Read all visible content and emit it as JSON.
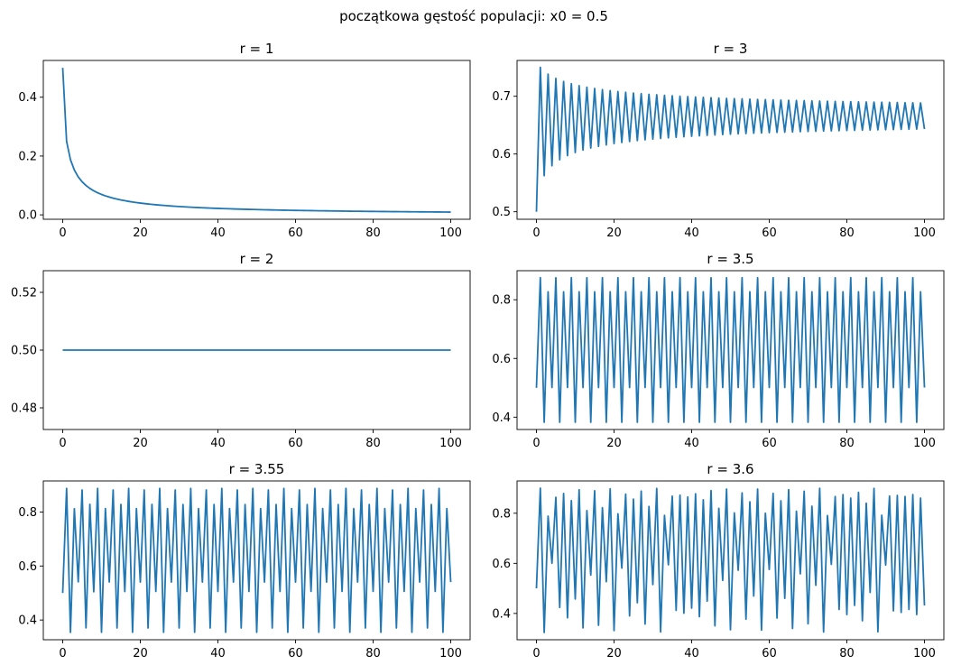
{
  "figure": {
    "suptitle": "początkowa gęstość populacji: x0 = 0.5",
    "line_color": "#1f77b4"
  },
  "chart_data": [
    {
      "type": "line",
      "title": "r = 1",
      "r": 1,
      "x0": 0.5,
      "n_steps": 100,
      "xlim": [
        -5,
        105
      ],
      "ylim": [
        -0.015,
        0.525
      ],
      "xticks": [
        0,
        20,
        40,
        60,
        80,
        100
      ],
      "yticks": [
        0.0,
        0.2,
        0.4
      ],
      "xtick_labels": [
        "0",
        "20",
        "40",
        "60",
        "80",
        "100"
      ],
      "ytick_labels": [
        "0.0",
        "0.2",
        "0.4"
      ]
    },
    {
      "type": "line",
      "title": "r = 3",
      "r": 3,
      "x0": 0.5,
      "n_steps": 100,
      "xlim": [
        -5,
        105
      ],
      "ylim": [
        0.487,
        0.762
      ],
      "xticks": [
        0,
        20,
        40,
        60,
        80,
        100
      ],
      "yticks": [
        0.5,
        0.6,
        0.7
      ],
      "xtick_labels": [
        "0",
        "20",
        "40",
        "60",
        "80",
        "100"
      ],
      "ytick_labels": [
        "0.5",
        "0.6",
        "0.7"
      ]
    },
    {
      "type": "line",
      "title": "r = 2",
      "r": 2,
      "x0": 0.5,
      "n_steps": 100,
      "xlim": [
        -5,
        105
      ],
      "ylim": [
        0.4725,
        0.5275
      ],
      "xticks": [
        0,
        20,
        40,
        60,
        80,
        100
      ],
      "yticks": [
        0.48,
        0.5,
        0.52
      ],
      "xtick_labels": [
        "0",
        "20",
        "40",
        "60",
        "80",
        "100"
      ],
      "ytick_labels": [
        "0.48",
        "0.50",
        "0.52"
      ]
    },
    {
      "type": "line",
      "title": "r = 3.5",
      "r": 3.5,
      "x0": 0.5,
      "n_steps": 100,
      "xlim": [
        -5,
        105
      ],
      "ylim": [
        0.358,
        0.899
      ],
      "xticks": [
        0,
        20,
        40,
        60,
        80,
        100
      ],
      "yticks": [
        0.4,
        0.6,
        0.8
      ],
      "xtick_labels": [
        "0",
        "20",
        "40",
        "60",
        "80",
        "100"
      ],
      "ytick_labels": [
        "0.4",
        "0.6",
        "0.8"
      ]
    },
    {
      "type": "line",
      "title": "r = 3.55",
      "r": 3.55,
      "x0": 0.5,
      "n_steps": 100,
      "xlim": [
        -5,
        105
      ],
      "ylim": [
        0.327,
        0.915
      ],
      "xticks": [
        0,
        20,
        40,
        60,
        80,
        100
      ],
      "yticks": [
        0.4,
        0.6,
        0.8
      ],
      "xtick_labels": [
        "0",
        "20",
        "40",
        "60",
        "80",
        "100"
      ],
      "ytick_labels": [
        "0.4",
        "0.6",
        "0.8"
      ]
    },
    {
      "type": "line",
      "title": "r = 3.6",
      "r": 3.6,
      "x0": 0.5,
      "n_steps": 100,
      "xlim": [
        -5,
        105
      ],
      "ylim": [
        0.295,
        0.929
      ],
      "xticks": [
        0,
        20,
        40,
        60,
        80,
        100
      ],
      "yticks": [
        0.4,
        0.6,
        0.8
      ],
      "xtick_labels": [
        "0",
        "20",
        "40",
        "60",
        "80",
        "100"
      ],
      "ytick_labels": [
        "0.4",
        "0.6",
        "0.8"
      ]
    }
  ]
}
